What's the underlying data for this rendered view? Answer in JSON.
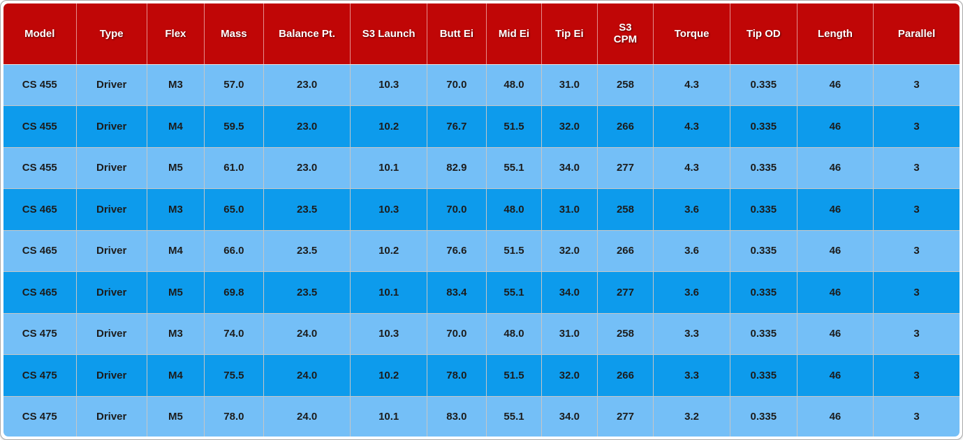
{
  "colors": {
    "header_bg": "#c00606",
    "header_text": "#ffffff",
    "row_light_bg": "#74bff7",
    "row_dark_bg": "#0d9bec",
    "cell_text": "#1c1c1c",
    "grid_line": "#c6c6c6",
    "outer_border": "#a8a8a8"
  },
  "chart_data": {
    "type": "table",
    "title": "",
    "columns": [
      "Model",
      "Type",
      "Flex",
      "Mass",
      "Balance Pt.",
      "S3 Launch",
      "Butt Ei",
      "Mid Ei",
      "Tip Ei",
      "S3\nCPM",
      "Torque",
      "Tip OD",
      "Length",
      "Parallel"
    ],
    "rows": [
      [
        "CS 455",
        "Driver",
        "M3",
        "57.0",
        "23.0",
        "10.3",
        "70.0",
        "48.0",
        "31.0",
        "258",
        "4.3",
        "0.335",
        "46",
        "3"
      ],
      [
        "CS 455",
        "Driver",
        "M4",
        "59.5",
        "23.0",
        "10.2",
        "76.7",
        "51.5",
        "32.0",
        "266",
        "4.3",
        "0.335",
        "46",
        "3"
      ],
      [
        "CS 455",
        "Driver",
        "M5",
        "61.0",
        "23.0",
        "10.1",
        "82.9",
        "55.1",
        "34.0",
        "277",
        "4.3",
        "0.335",
        "46",
        "3"
      ],
      [
        "CS 465",
        "Driver",
        "M3",
        "65.0",
        "23.5",
        "10.3",
        "70.0",
        "48.0",
        "31.0",
        "258",
        "3.6",
        "0.335",
        "46",
        "3"
      ],
      [
        "CS 465",
        "Driver",
        "M4",
        "66.0",
        "23.5",
        "10.2",
        "76.6",
        "51.5",
        "32.0",
        "266",
        "3.6",
        "0.335",
        "46",
        "3"
      ],
      [
        "CS 465",
        "Driver",
        "M5",
        "69.8",
        "23.5",
        "10.1",
        "83.4",
        "55.1",
        "34.0",
        "277",
        "3.6",
        "0.335",
        "46",
        "3"
      ],
      [
        "CS 475",
        "Driver",
        "M3",
        "74.0",
        "24.0",
        "10.3",
        "70.0",
        "48.0",
        "31.0",
        "258",
        "3.3",
        "0.335",
        "46",
        "3"
      ],
      [
        "CS 475",
        "Driver",
        "M4",
        "75.5",
        "24.0",
        "10.2",
        "78.0",
        "51.5",
        "32.0",
        "266",
        "3.3",
        "0.335",
        "46",
        "3"
      ],
      [
        "CS 475",
        "Driver",
        "M5",
        "78.0",
        "24.0",
        "10.1",
        "83.0",
        "55.1",
        "34.0",
        "277",
        "3.2",
        "0.335",
        "46",
        "3"
      ]
    ]
  }
}
